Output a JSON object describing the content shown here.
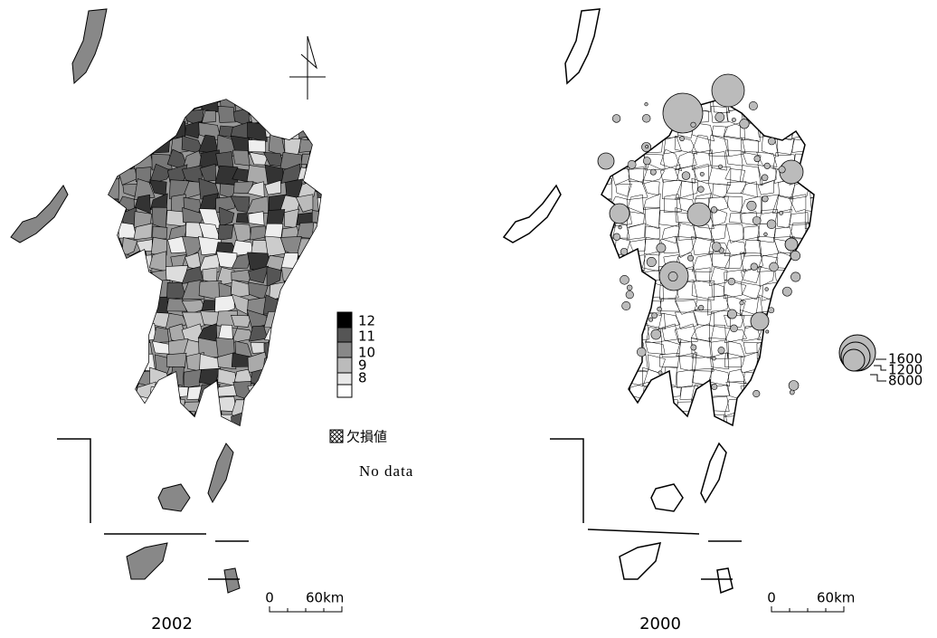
{
  "maps": [
    {
      "year": "2002",
      "legend": {
        "labels": [
          "12",
          "11",
          "10",
          "9",
          "8"
        ],
        "missing": "欠損値",
        "missing_en": "No data"
      },
      "scale": {
        "start": "0",
        "end": "60km"
      }
    },
    {
      "year": "2000",
      "legend": {
        "labels": [
          "1600",
          "1200",
          "8000"
        ]
      },
      "scale": {
        "start": "0",
        "end": "60km"
      }
    }
  ]
}
